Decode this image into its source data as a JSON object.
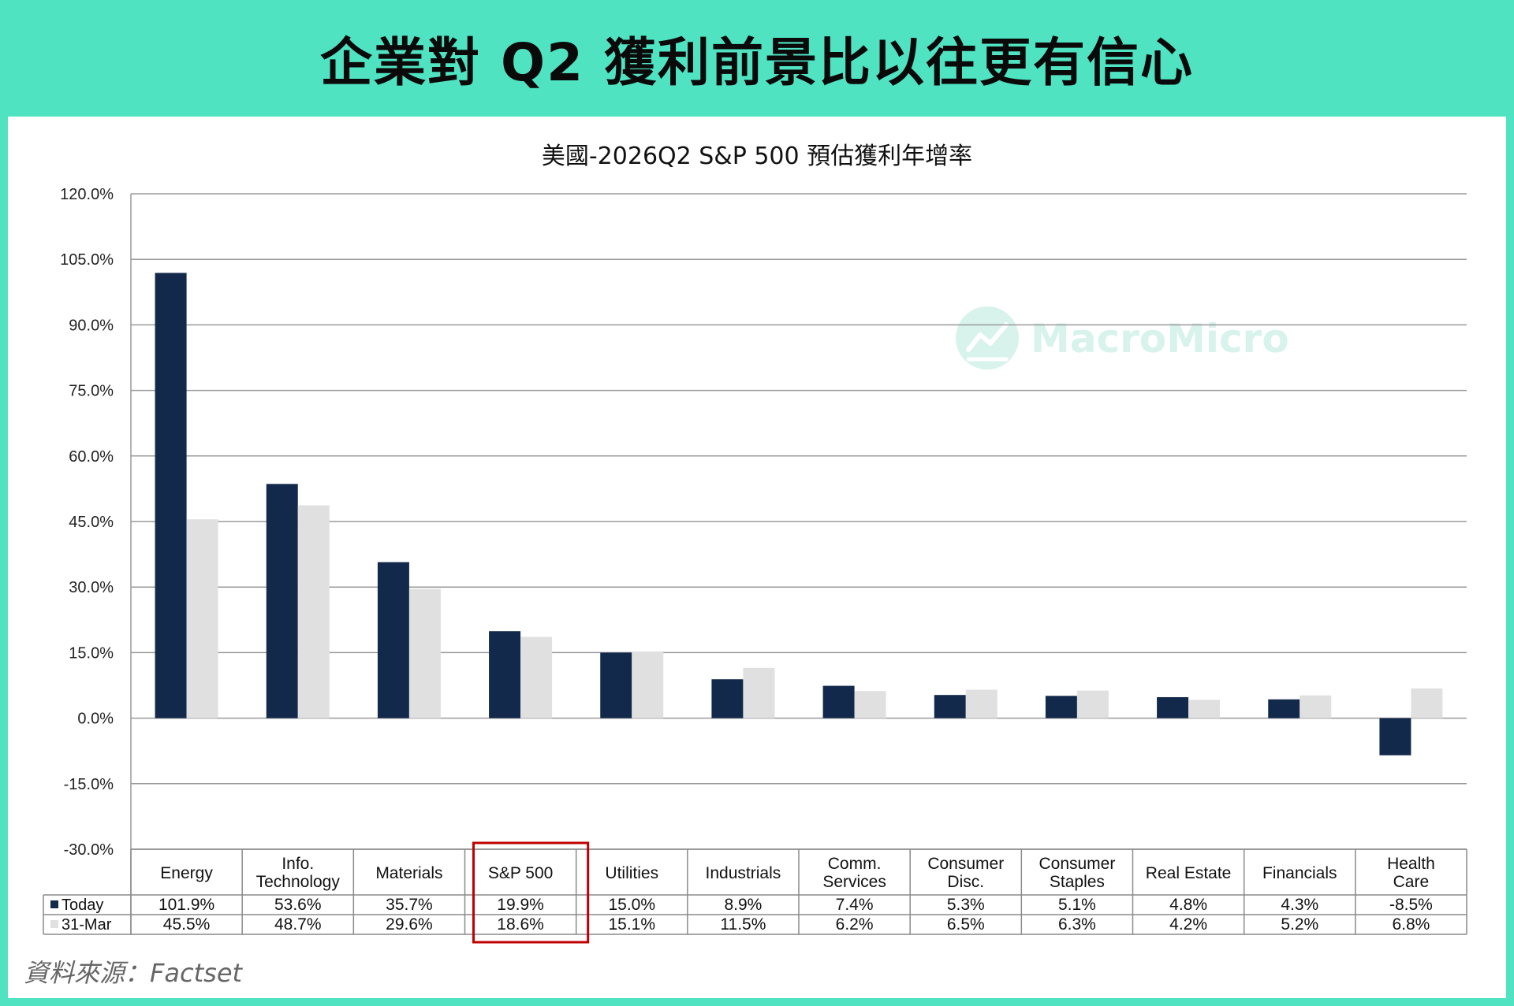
{
  "banner": {
    "title": "企業對 Q2 獲利前景比以往更有信心"
  },
  "watermark": {
    "text": "MacroMicro",
    "icon": "macromicro-logo-icon"
  },
  "source": {
    "text": "資料來源：Factset"
  },
  "colors": {
    "today": "#13294b",
    "mar31": "#e0e0e0",
    "accent": "#50e3c2",
    "highlight": "#c00000",
    "grid": "#9a9a9a"
  },
  "chart_data": {
    "type": "bar",
    "title": "美國-2026Q2 S&P 500 預估獲利年增率",
    "categories": [
      [
        "Energy"
      ],
      [
        "Info.",
        "Technology"
      ],
      [
        "Materials"
      ],
      [
        "S&P 500"
      ],
      [
        "Utilities"
      ],
      [
        "Industrials"
      ],
      [
        "Comm.",
        "Services"
      ],
      [
        "Consumer",
        "Disc."
      ],
      [
        "Consumer",
        "Staples"
      ],
      [
        "Real Estate"
      ],
      [
        "Financials"
      ],
      [
        "Health",
        "Care"
      ]
    ],
    "series": [
      {
        "name": "Today",
        "values": [
          101.9,
          53.6,
          35.7,
          19.9,
          15.0,
          8.9,
          7.4,
          5.3,
          5.1,
          4.8,
          4.3,
          -8.5
        ],
        "labels": [
          "101.9%",
          "53.6%",
          "35.7%",
          "19.9%",
          "15.0%",
          "8.9%",
          "7.4%",
          "5.3%",
          "5.1%",
          "4.8%",
          "4.3%",
          "-8.5%"
        ]
      },
      {
        "name": "31-Mar",
        "values": [
          45.5,
          48.7,
          29.6,
          18.6,
          15.1,
          11.5,
          6.2,
          6.5,
          6.3,
          4.2,
          5.2,
          6.8
        ],
        "labels": [
          "45.5%",
          "48.7%",
          "29.6%",
          "18.6%",
          "15.1%",
          "11.5%",
          "6.2%",
          "6.5%",
          "6.3%",
          "4.2%",
          "5.2%",
          "6.8%"
        ]
      }
    ],
    "yticks": [
      "120.0%",
      "105.0%",
      "90.0%",
      "75.0%",
      "60.0%",
      "45.0%",
      "30.0%",
      "15.0%",
      "0.0%",
      "-15.0%",
      "-30.0%"
    ],
    "ylim": [
      -30,
      120
    ],
    "highlight_category": "S&P 500",
    "legend": "table-left"
  }
}
